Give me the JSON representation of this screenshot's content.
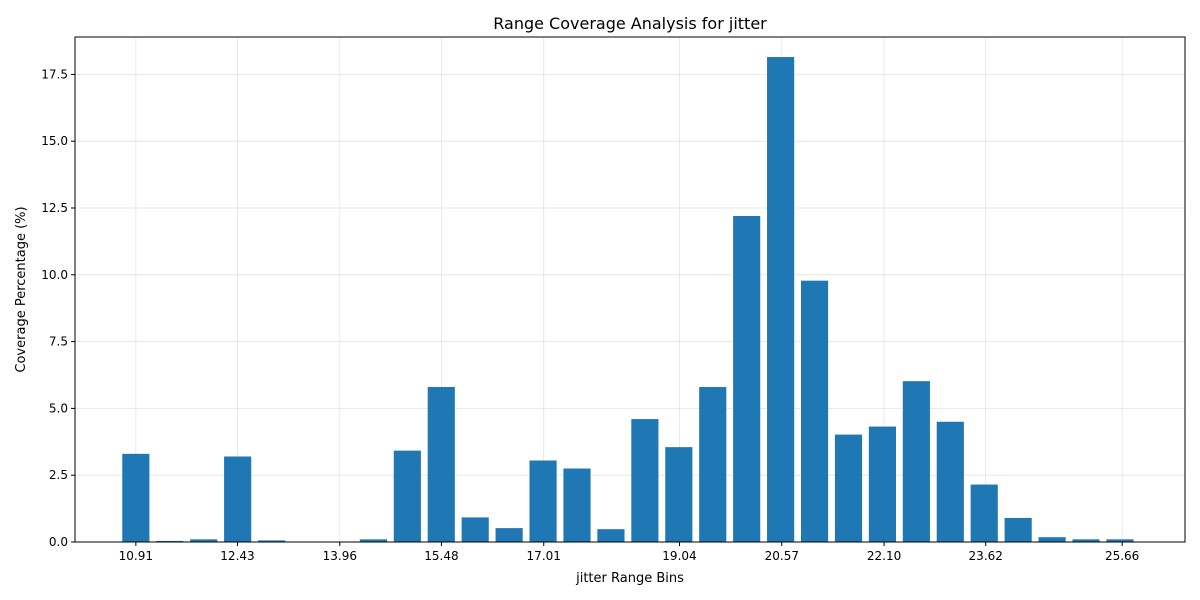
{
  "chart_data": {
    "type": "bar",
    "title": "Range Coverage Analysis for jitter",
    "xlabel": "jitter Range Bins",
    "ylabel": "Coverage Percentage (%)",
    "bar_color": "#1f77b4",
    "grid": true,
    "xlim": [
      10.0,
      26.6
    ],
    "ylim": [
      0,
      18.9
    ],
    "yticks": [
      0.0,
      2.5,
      5.0,
      7.5,
      10.0,
      12.5,
      15.0,
      17.5
    ],
    "ytick_labels": [
      "0.0",
      "2.5",
      "5.0",
      "7.5",
      "10.0",
      "12.5",
      "15.0",
      "17.5"
    ],
    "xticks": [
      10.91,
      12.43,
      13.96,
      15.48,
      17.01,
      19.04,
      20.57,
      22.1,
      23.62,
      25.66
    ],
    "xtick_labels": [
      "10.91",
      "12.43",
      "13.96",
      "15.48",
      "17.01",
      "19.04",
      "20.57",
      "22.10",
      "23.62",
      "25.66"
    ],
    "bin_width": 0.5075,
    "bin_start": 10.91,
    "values": [
      3.3,
      0.04,
      0.1,
      3.2,
      0.06,
      0.0,
      0.0,
      0.1,
      3.42,
      5.8,
      0.92,
      0.52,
      3.05,
      2.75,
      0.48,
      4.6,
      3.55,
      5.8,
      12.2,
      18.15,
      9.78,
      4.02,
      4.32,
      6.02,
      4.5,
      2.15,
      0.9,
      0.18,
      0.1,
      0.1
    ]
  }
}
